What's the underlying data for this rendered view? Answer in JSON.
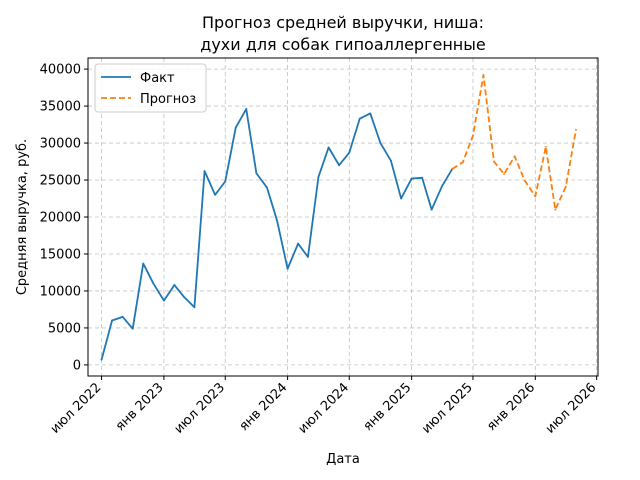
{
  "chart_data": {
    "type": "line",
    "title": [
      "Прогноз средней выручки, ниша:",
      "духи для собак гипоаллергенные"
    ],
    "xlabel": "Дата",
    "ylabel": "Средняя выручка, руб.",
    "xlim": [
      "2022-05-22",
      "2026-07-05"
    ],
    "ylim": [
      -1500,
      41500
    ],
    "x_ticks": [
      {
        "date": "2022-07-01",
        "label": "июл 2022"
      },
      {
        "date": "2023-01-01",
        "label": "янв 2023"
      },
      {
        "date": "2023-07-01",
        "label": "июл 2023"
      },
      {
        "date": "2024-01-01",
        "label": "янв 2024"
      },
      {
        "date": "2024-07-01",
        "label": "июл 2024"
      },
      {
        "date": "2025-01-01",
        "label": "янв 2025"
      },
      {
        "date": "2025-07-01",
        "label": "июл 2025"
      },
      {
        "date": "2026-01-01",
        "label": "янв 2026"
      },
      {
        "date": "2026-07-01",
        "label": "июл 2026"
      }
    ],
    "y_ticks": [
      0,
      5000,
      10000,
      15000,
      20000,
      25000,
      30000,
      35000,
      40000
    ],
    "grid": true,
    "legend_position": "top-left",
    "series": [
      {
        "name": "Факт",
        "color": "#1f77b4",
        "style": "solid",
        "x": [
          "2022-07-01",
          "2022-08-01",
          "2022-09-01",
          "2022-10-01",
          "2022-11-01",
          "2022-12-01",
          "2023-01-01",
          "2023-02-01",
          "2023-03-01",
          "2023-04-01",
          "2023-05-01",
          "2023-06-01",
          "2023-07-01",
          "2023-08-01",
          "2023-09-01",
          "2023-10-01",
          "2023-11-01",
          "2023-12-01",
          "2024-01-01",
          "2024-02-01",
          "2024-03-01",
          "2024-04-01",
          "2024-05-01",
          "2024-06-01",
          "2024-07-01",
          "2024-08-01",
          "2024-09-01",
          "2024-10-01",
          "2024-11-01",
          "2024-12-01",
          "2025-01-01",
          "2025-02-01",
          "2025-03-01",
          "2025-04-01",
          "2025-05-01"
        ],
        "y": [
          700,
          6000,
          6500,
          4900,
          13700,
          11000,
          8700,
          10800,
          9200,
          7800,
          26200,
          23000,
          24800,
          32100,
          34600,
          25900,
          24000,
          19500,
          13000,
          16400,
          14600,
          25400,
          29400,
          27000,
          28700,
          33300,
          34000,
          30000,
          27600,
          22500,
          25200,
          25300,
          21000,
          24200,
          26500
        ]
      },
      {
        "name": "Прогноз",
        "color": "#ff7f0e",
        "style": "dashed",
        "x": [
          "2025-05-01",
          "2025-06-01",
          "2025-07-01",
          "2025-08-01",
          "2025-09-01",
          "2025-10-01",
          "2025-11-01",
          "2025-12-01",
          "2026-01-01",
          "2026-02-01",
          "2026-03-01",
          "2026-04-01",
          "2026-05-01"
        ],
        "y": [
          26500,
          27400,
          31000,
          39200,
          27500,
          25800,
          28200,
          24900,
          22800,
          29500,
          21000,
          24100,
          31800
        ]
      }
    ]
  }
}
